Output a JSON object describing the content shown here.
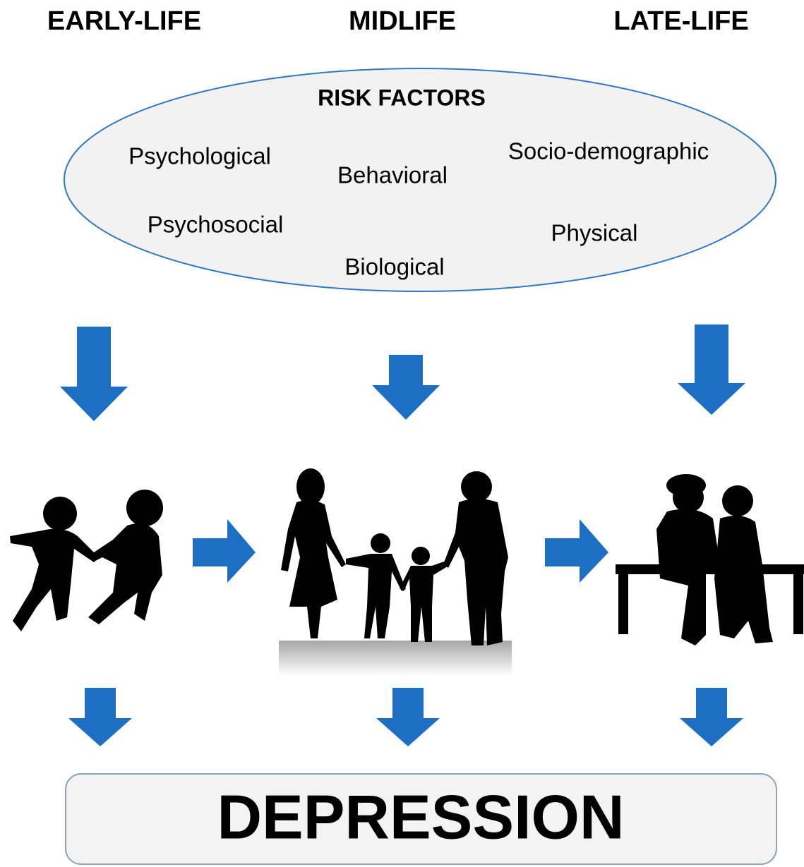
{
  "stages": [
    "EARLY-LIFE",
    "MIDLIFE",
    "LATE-LIFE"
  ],
  "risk_factors": {
    "title": "RISK FACTORS",
    "items": [
      "Psychological",
      "Behavioral",
      "Socio-demographic",
      "Psychosocial",
      "Physical",
      "Biological"
    ]
  },
  "outcome": "DEPRESSION"
}
